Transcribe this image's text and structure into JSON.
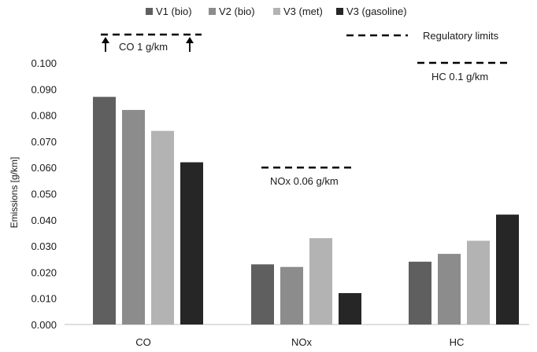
{
  "chart_data": {
    "type": "bar",
    "title": "",
    "xlabel": "",
    "ylabel": "Emissions [g/km]",
    "ylim": [
      0,
      0.1
    ],
    "yticks": [
      "0.000",
      "0.010",
      "0.020",
      "0.030",
      "0.040",
      "0.050",
      "0.060",
      "0.070",
      "0.080",
      "0.090",
      "0.100"
    ],
    "grid": false,
    "legend_position": "top",
    "categories": [
      "CO",
      "NOx",
      "HC"
    ],
    "series": [
      {
        "name": "V1 (bio)",
        "color": "#5f5f5f",
        "values": [
          0.087,
          0.023,
          0.024
        ]
      },
      {
        "name": "V2 (bio)",
        "color": "#8c8c8c",
        "values": [
          0.082,
          0.022,
          0.027
        ]
      },
      {
        "name": "V3 (met)",
        "color": "#b3b3b3",
        "values": [
          0.074,
          0.033,
          0.032
        ]
      },
      {
        "name": "V3 (gasoline)",
        "color": "#262626",
        "values": [
          0.062,
          0.012,
          0.042
        ]
      }
    ],
    "limit_legend": "Regulatory limits",
    "annotations": {
      "co_limit": "CO 1 g/km",
      "nox_limit": "NOx 0.06 g/km",
      "hc_limit": "HC 0.1 g/km"
    },
    "limits": {
      "nox": 0.06,
      "hc": 0.1
    }
  }
}
